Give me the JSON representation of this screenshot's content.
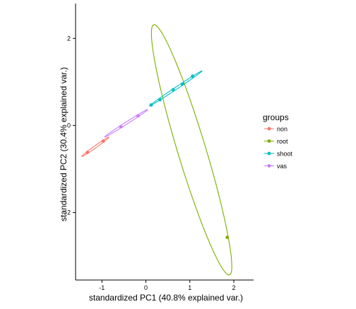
{
  "chart_data": {
    "type": "scatter",
    "title": "",
    "xlabel": "standardized PC1 (40.8% explained var.)",
    "ylabel": "standardized PC2 (30.4% explained var.)",
    "xlim": [
      -1.6,
      2.45
    ],
    "ylim": [
      -3.55,
      2.8
    ],
    "x_ticks": [
      -1,
      0,
      1,
      2
    ],
    "x_tick_labels": [
      "-1",
      "0",
      "1",
      "2"
    ],
    "y_ticks": [
      -2,
      0,
      2
    ],
    "y_tick_labels": [
      "-2",
      "0",
      "2"
    ],
    "grid": false,
    "legend": {
      "title": "groups",
      "placement": "right"
    },
    "series": [
      {
        "name": "non",
        "color": "#f8766d",
        "points": [
          {
            "x": -1.33,
            "y": -0.62
          },
          {
            "x": -0.97,
            "y": -0.36
          }
        ],
        "ellipse": {
          "cx": -1.15,
          "cy": -0.49,
          "rx": 0.38,
          "ry": 0.025,
          "angle": 35.8
        }
      },
      {
        "name": "root",
        "color": "#7cae00",
        "points": [
          {
            "x": 1.85,
            "y": -2.57
          }
        ],
        "ellipse": {
          "cx": 1.04,
          "cy": -0.56,
          "rx": 3.0,
          "ry": 0.32,
          "angle": -73.3
        }
      },
      {
        "name": "shoot",
        "color": "#00bfc4",
        "points": [
          {
            "x": 0.12,
            "y": 0.47
          },
          {
            "x": 0.32,
            "y": 0.59
          },
          {
            "x": 0.62,
            "y": 0.82
          },
          {
            "x": 0.83,
            "y": 0.95
          },
          {
            "x": 1.06,
            "y": 1.13
          }
        ],
        "ellipse": {
          "cx": 0.68,
          "cy": 0.85,
          "rx": 0.72,
          "ry": 0.025,
          "angle": 34.0
        }
      },
      {
        "name": "vas",
        "color": "#c77cff",
        "points": [
          {
            "x": -0.57,
            "y": -0.03
          },
          {
            "x": -0.18,
            "y": 0.22
          }
        ],
        "ellipse": {
          "cx": -0.45,
          "cy": 0.05,
          "rx": 0.58,
          "ry": 0.025,
          "angle": 32.8
        }
      }
    ]
  }
}
